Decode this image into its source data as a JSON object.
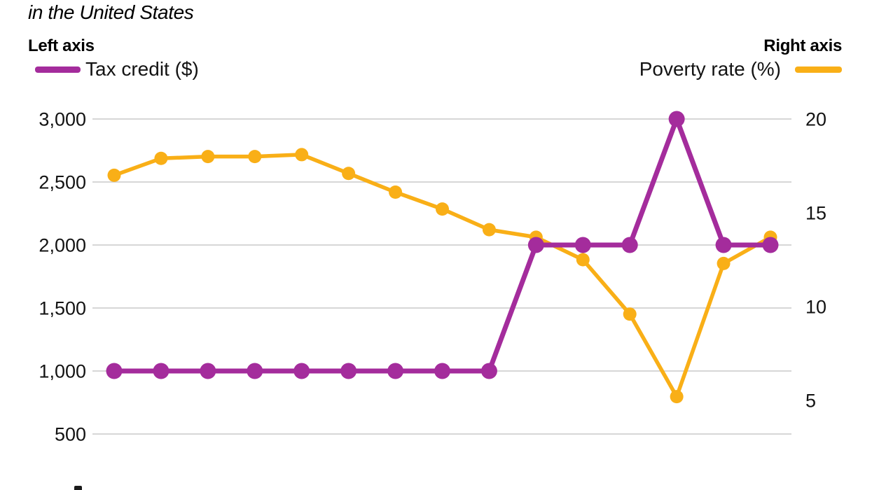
{
  "header": {
    "title_line": "in the United States",
    "left_axis_heading": "Left axis",
    "right_axis_heading": "Right axis",
    "legend_left_label": "Tax credit ($)",
    "legend_right_label": "Poverty rate (%)"
  },
  "colors": {
    "tax_credit": "#A42C9C",
    "poverty_rate": "#F9AF17",
    "gridline": "#C8C8C8",
    "text": "#131313"
  },
  "chart_data": {
    "type": "line",
    "dual_axis": true,
    "title_visible_fragment": "in the United States",
    "x_tick_labels_visible": false,
    "point_count": 15,
    "grid": true,
    "legend_position": "top",
    "series": [
      {
        "name": "Tax credit ($)",
        "axis": "left",
        "color": "#A42C9C",
        "values": [
          1000,
          1000,
          1000,
          1000,
          1000,
          1000,
          1000,
          1000,
          1000,
          2000,
          2000,
          2000,
          3000,
          2000,
          2000
        ]
      },
      {
        "name": "Poverty rate (%)",
        "axis": "right",
        "color": "#F9AF17",
        "values": [
          17.0,
          17.9,
          18.0,
          18.0,
          18.1,
          17.1,
          16.1,
          15.2,
          14.1,
          13.7,
          12.5,
          9.6,
          5.2,
          12.3,
          13.7
        ]
      }
    ],
    "left_axis": {
      "heading": "Left axis",
      "tick_labels": [
        "3,000",
        "2,500",
        "2,000",
        "1,500",
        "1,000",
        "500"
      ],
      "tick_values": [
        3000,
        2500,
        2000,
        1500,
        1000,
        500
      ],
      "range": [
        500,
        3000
      ]
    },
    "right_axis": {
      "heading": "Right axis",
      "tick_labels": [
        "20",
        "15",
        "10",
        "5"
      ],
      "tick_values": [
        20,
        15,
        10,
        5
      ],
      "range": [
        5,
        20
      ]
    }
  }
}
